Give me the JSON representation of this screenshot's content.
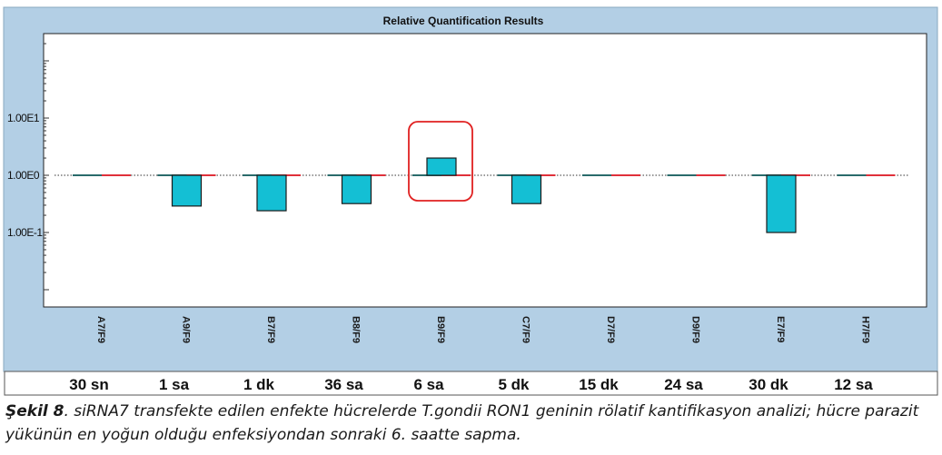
{
  "chart_data": {
    "type": "bar",
    "title": "Relative Quantification Results",
    "xlabel": "",
    "ylabel": "",
    "scale": "log10",
    "baseline": 1,
    "ylim": [
      0.01,
      1000
    ],
    "yticks": [
      {
        "value": 10,
        "label": "1.00E1"
      },
      {
        "value": 1,
        "label": "1.00E0"
      },
      {
        "value": 0.1,
        "label": "1.00E-1"
      }
    ],
    "categories": [
      "A7/F9",
      "A9/F9",
      "B7/F9",
      "B8/F9",
      "B9/F9",
      "C7/F9",
      "D7/F9",
      "D9/F9",
      "E7/F9",
      "H7/F9"
    ],
    "time_labels": [
      "30 sn",
      "1 sa",
      "1 dk",
      "36 sa",
      "6 sa",
      "5 dk",
      "15 dk",
      "24 sa",
      "30 dk",
      "12 sa"
    ],
    "values": [
      1.0,
      0.29,
      0.24,
      0.32,
      2.0,
      0.32,
      1.0,
      1.0,
      0.1,
      1.0
    ],
    "highlight_index": 4,
    "grid": false,
    "legend": "none"
  },
  "colors": {
    "frame_bg": "#b3cfe5",
    "bar_fill": "#14bfd4",
    "bar_stroke": "#1a1a1a",
    "ref_left": "#2a6b6b",
    "ref_right": "#e0303a",
    "highlight": "#e02020",
    "plot_bg": "#ffffff"
  },
  "caption": {
    "label": "Şekil 8",
    "text": ". siRNA7 transfekte edilen enfekte hücrelerde T.gondii RON1 geninin rölatif kantifikasyon analizi; hücre parazit yükünün en yoğun olduğu enfeksiyondan sonraki 6. saatte sapma."
  }
}
